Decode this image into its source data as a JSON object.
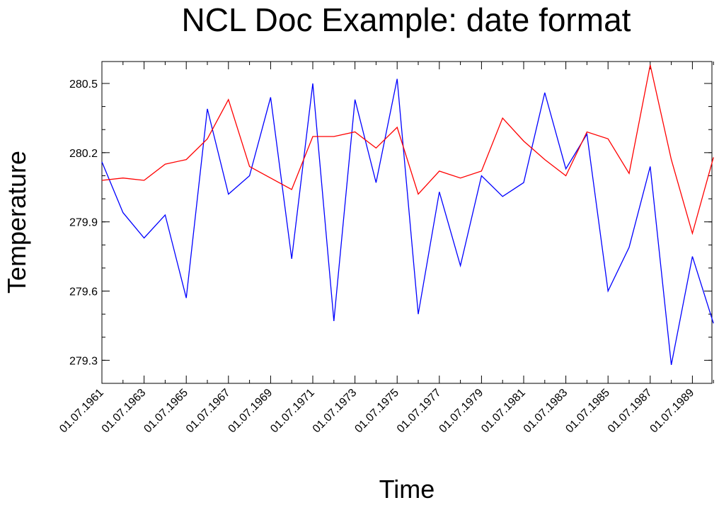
{
  "chart_data": {
    "type": "line",
    "title": "NCL Doc Example: date format",
    "xlabel": "Time",
    "ylabel": "Temperature",
    "x": [
      "01.07.1961",
      "01.07.1962",
      "01.07.1963",
      "01.07.1964",
      "01.07.1965",
      "01.07.1966",
      "01.07.1967",
      "01.07.1968",
      "01.07.1969",
      "01.07.1970",
      "01.07.1971",
      "01.07.1972",
      "01.07.1973",
      "01.07.1974",
      "01.07.1975",
      "01.07.1976",
      "01.07.1977",
      "01.07.1978",
      "01.07.1979",
      "01.07.1980",
      "01.07.1981",
      "01.07.1982",
      "01.07.1983",
      "01.07.1984",
      "01.07.1985",
      "01.07.1986",
      "01.07.1987",
      "01.07.1988",
      "01.07.1989",
      "01.07.1990"
    ],
    "x_tick_labels": [
      "01.07.1961",
      "01.07.1963",
      "01.07.1965",
      "01.07.1967",
      "01.07.1969",
      "01.07.1971",
      "01.07.1973",
      "01.07.1975",
      "01.07.1977",
      "01.07.1979",
      "01.07.1981",
      "01.07.1983",
      "01.07.1985",
      "01.07.1987",
      "01.07.1989"
    ],
    "y_ticks": [
      279.3,
      279.6,
      279.9,
      280.2,
      280.5
    ],
    "y_tick_labels": [
      "279.3",
      "279.6",
      "279.9",
      "280.2",
      "280.5"
    ],
    "ylim": [
      279.2,
      280.595
    ],
    "grid": false,
    "series": [
      {
        "color": "#0000ff",
        "values": [
          280.16,
          279.94,
          279.83,
          279.93,
          279.57,
          280.39,
          280.02,
          280.1,
          280.44,
          279.74,
          280.5,
          279.47,
          280.43,
          280.07,
          280.52,
          279.5,
          280.03,
          279.71,
          280.1,
          280.01,
          280.07,
          280.46,
          280.13,
          280.28,
          279.6,
          279.79,
          280.14,
          279.28,
          279.75,
          279.46
        ]
      },
      {
        "color": "#ff0000",
        "values": [
          280.08,
          280.09,
          280.08,
          280.15,
          280.17,
          280.26,
          280.43,
          280.14,
          280.09,
          280.04,
          280.27,
          280.27,
          280.29,
          280.22,
          280.31,
          280.02,
          280.12,
          280.09,
          280.12,
          280.35,
          280.25,
          280.17,
          280.1,
          280.29,
          280.26,
          280.11,
          280.58,
          280.17,
          279.85,
          280.18
        ]
      }
    ]
  }
}
